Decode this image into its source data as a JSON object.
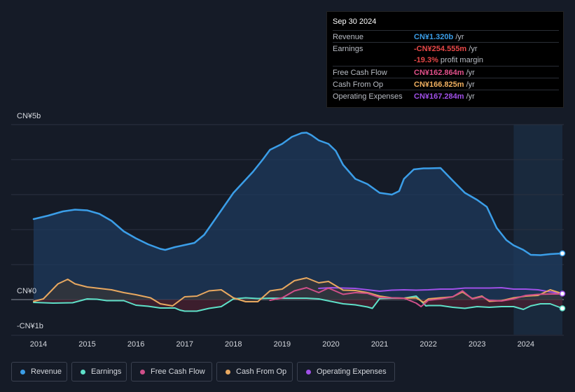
{
  "tooltip": {
    "date": "Sep 30 2024",
    "rows": [
      {
        "label": "Revenue",
        "value": "CN¥1.320b",
        "unit": " /yr",
        "color": "#3b9ee8"
      },
      {
        "label": "Earnings",
        "value": "-CN¥254.555m",
        "unit": " /yr",
        "color": "#e84848"
      },
      {
        "label": "",
        "value": "-19.3%",
        "unit": " profit margin",
        "color": "#e84848"
      },
      {
        "label": "Free Cash Flow",
        "value": "CN¥162.864m",
        "unit": " /yr",
        "color": "#e0508a"
      },
      {
        "label": "Cash From Op",
        "value": "CN¥166.825m",
        "unit": " /yr",
        "color": "#f0b060"
      },
      {
        "label": "Operating Expenses",
        "value": "CN¥167.284m",
        "unit": " /yr",
        "color": "#a050e8"
      }
    ]
  },
  "axis": {
    "top": "CN¥5b",
    "zero": "CN¥0",
    "bottom": "-CN¥1b"
  },
  "legend": [
    {
      "label": "Revenue",
      "color": "#3b9ee8"
    },
    {
      "label": "Earnings",
      "color": "#5ee0c8"
    },
    {
      "label": "Free Cash Flow",
      "color": "#d0508a"
    },
    {
      "label": "Cash From Op",
      "color": "#e8a860"
    },
    {
      "label": "Operating Expenses",
      "color": "#a050e8"
    }
  ],
  "chart_data": {
    "type": "line",
    "title": "",
    "ylabel": "CN¥",
    "ylim": [
      -1,
      5
    ],
    "y_tick_labels": [
      "CN¥5b",
      "CN¥0",
      "-CN¥1b"
    ],
    "x_tick_labels": [
      "2014",
      "2015",
      "2016",
      "2017",
      "2018",
      "2019",
      "2020",
      "2021",
      "2022",
      "2023",
      "2024"
    ],
    "x_range": [
      2013.9,
      2024.75
    ],
    "series": [
      {
        "name": "Revenue",
        "color": "#3b9ee8",
        "unit": "CN¥b",
        "points": [
          [
            2013.9,
            2.3
          ],
          [
            2014.2,
            2.4
          ],
          [
            2014.5,
            2.52
          ],
          [
            2014.75,
            2.57
          ],
          [
            2015.0,
            2.55
          ],
          [
            2015.25,
            2.45
          ],
          [
            2015.5,
            2.25
          ],
          [
            2015.75,
            1.95
          ],
          [
            2016.0,
            1.75
          ],
          [
            2016.25,
            1.58
          ],
          [
            2016.5,
            1.45
          ],
          [
            2016.6,
            1.42
          ],
          [
            2016.8,
            1.5
          ],
          [
            2017.0,
            1.56
          ],
          [
            2017.2,
            1.62
          ],
          [
            2017.4,
            1.85
          ],
          [
            2017.6,
            2.25
          ],
          [
            2017.8,
            2.65
          ],
          [
            2018.0,
            3.05
          ],
          [
            2018.2,
            3.35
          ],
          [
            2018.4,
            3.65
          ],
          [
            2018.6,
            4.0
          ],
          [
            2018.75,
            4.28
          ],
          [
            2019.0,
            4.45
          ],
          [
            2019.2,
            4.65
          ],
          [
            2019.4,
            4.76
          ],
          [
            2019.5,
            4.77
          ],
          [
            2019.6,
            4.7
          ],
          [
            2019.75,
            4.55
          ],
          [
            2019.95,
            4.45
          ],
          [
            2020.1,
            4.25
          ],
          [
            2020.25,
            3.85
          ],
          [
            2020.5,
            3.45
          ],
          [
            2020.75,
            3.3
          ],
          [
            2021.0,
            3.05
          ],
          [
            2021.25,
            3.0
          ],
          [
            2021.4,
            3.1
          ],
          [
            2021.5,
            3.45
          ],
          [
            2021.7,
            3.72
          ],
          [
            2021.9,
            3.75
          ],
          [
            2022.0,
            3.75
          ],
          [
            2022.25,
            3.76
          ],
          [
            2022.5,
            3.4
          ],
          [
            2022.75,
            3.05
          ],
          [
            2023.0,
            2.85
          ],
          [
            2023.2,
            2.65
          ],
          [
            2023.4,
            2.05
          ],
          [
            2023.6,
            1.7
          ],
          [
            2023.75,
            1.55
          ],
          [
            2023.95,
            1.42
          ],
          [
            2024.1,
            1.28
          ],
          [
            2024.3,
            1.27
          ],
          [
            2024.5,
            1.3
          ],
          [
            2024.75,
            1.32
          ]
        ]
      },
      {
        "name": "Earnings",
        "color": "#5ee0c8",
        "unit": "CN¥b",
        "points": [
          [
            2013.9,
            -0.08
          ],
          [
            2014.3,
            -0.1
          ],
          [
            2014.7,
            -0.09
          ],
          [
            2015.0,
            0.02
          ],
          [
            2015.2,
            0.01
          ],
          [
            2015.4,
            -0.03
          ],
          [
            2015.75,
            -0.03
          ],
          [
            2016.0,
            -0.16
          ],
          [
            2016.25,
            -0.19
          ],
          [
            2016.5,
            -0.24
          ],
          [
            2016.8,
            -0.24
          ],
          [
            2016.9,
            -0.3
          ],
          [
            2017.0,
            -0.33
          ],
          [
            2017.25,
            -0.33
          ],
          [
            2017.5,
            -0.25
          ],
          [
            2017.75,
            -0.2
          ],
          [
            2018.0,
            0.02
          ],
          [
            2018.25,
            0.05
          ],
          [
            2018.5,
            0.03
          ],
          [
            2018.75,
            0.04
          ],
          [
            2019.0,
            0.04
          ],
          [
            2019.5,
            0.04
          ],
          [
            2019.75,
            0.02
          ],
          [
            2020.0,
            -0.05
          ],
          [
            2020.25,
            -0.12
          ],
          [
            2020.5,
            -0.15
          ],
          [
            2020.75,
            -0.21
          ],
          [
            2020.85,
            -0.25
          ],
          [
            2021.0,
            0.03
          ],
          [
            2021.25,
            0.04
          ],
          [
            2021.5,
            0.04
          ],
          [
            2021.75,
            0.1
          ],
          [
            2021.95,
            -0.18
          ],
          [
            2022.0,
            -0.17
          ],
          [
            2022.25,
            -0.17
          ],
          [
            2022.5,
            -0.22
          ],
          [
            2022.75,
            -0.25
          ],
          [
            2023.0,
            -0.2
          ],
          [
            2023.25,
            -0.22
          ],
          [
            2023.5,
            -0.2
          ],
          [
            2023.75,
            -0.2
          ],
          [
            2023.95,
            -0.28
          ],
          [
            2024.1,
            -0.18
          ],
          [
            2024.3,
            -0.12
          ],
          [
            2024.5,
            -0.12
          ],
          [
            2024.75,
            -0.25
          ]
        ]
      },
      {
        "name": "Free Cash Flow",
        "color": "#d0508a",
        "unit": "CN¥b",
        "points": [
          [
            2018.75,
            -0.02
          ],
          [
            2019.0,
            0.05
          ],
          [
            2019.25,
            0.25
          ],
          [
            2019.5,
            0.34
          ],
          [
            2019.75,
            0.2
          ],
          [
            2019.95,
            0.33
          ],
          [
            2020.25,
            0.15
          ],
          [
            2020.5,
            0.2
          ],
          [
            2020.75,
            0.18
          ],
          [
            2021.0,
            0.06
          ],
          [
            2021.25,
            0.05
          ],
          [
            2021.5,
            0.04
          ],
          [
            2021.75,
            -0.1
          ],
          [
            2021.85,
            -0.2
          ],
          [
            2022.0,
            -0.02
          ],
          [
            2022.25,
            0.02
          ],
          [
            2022.5,
            0.08
          ],
          [
            2022.7,
            0.25
          ],
          [
            2022.9,
            0.02
          ],
          [
            2023.1,
            0.08
          ],
          [
            2023.25,
            -0.02
          ],
          [
            2023.5,
            -0.04
          ],
          [
            2023.75,
            0.02
          ],
          [
            2024.0,
            0.12
          ],
          [
            2024.25,
            0.15
          ],
          [
            2024.5,
            0.16
          ],
          [
            2024.75,
            0.16
          ]
        ]
      },
      {
        "name": "Cash From Op",
        "color": "#e8a860",
        "unit": "CN¥b",
        "points": [
          [
            2013.9,
            -0.05
          ],
          [
            2014.1,
            0.02
          ],
          [
            2014.4,
            0.45
          ],
          [
            2014.6,
            0.58
          ],
          [
            2014.75,
            0.45
          ],
          [
            2015.0,
            0.36
          ],
          [
            2015.25,
            0.32
          ],
          [
            2015.5,
            0.28
          ],
          [
            2015.75,
            0.2
          ],
          [
            2016.0,
            0.14
          ],
          [
            2016.3,
            0.05
          ],
          [
            2016.5,
            -0.12
          ],
          [
            2016.75,
            -0.18
          ],
          [
            2017.0,
            0.08
          ],
          [
            2017.25,
            0.1
          ],
          [
            2017.5,
            0.25
          ],
          [
            2017.75,
            0.28
          ],
          [
            2018.0,
            0.05
          ],
          [
            2018.25,
            -0.06
          ],
          [
            2018.5,
            -0.06
          ],
          [
            2018.75,
            0.25
          ],
          [
            2019.0,
            0.3
          ],
          [
            2019.25,
            0.54
          ],
          [
            2019.5,
            0.62
          ],
          [
            2019.75,
            0.48
          ],
          [
            2019.95,
            0.52
          ],
          [
            2020.25,
            0.27
          ],
          [
            2020.5,
            0.26
          ],
          [
            2020.75,
            0.2
          ],
          [
            2021.0,
            0.1
          ],
          [
            2021.25,
            0.05
          ],
          [
            2021.5,
            0.04
          ],
          [
            2021.75,
            0.05
          ],
          [
            2021.9,
            -0.08
          ],
          [
            2022.0,
            0.02
          ],
          [
            2022.25,
            0.05
          ],
          [
            2022.5,
            0.08
          ],
          [
            2022.7,
            0.22
          ],
          [
            2022.9,
            0.03
          ],
          [
            2023.1,
            0.1
          ],
          [
            2023.25,
            -0.05
          ],
          [
            2023.5,
            -0.03
          ],
          [
            2023.75,
            0.05
          ],
          [
            2024.0,
            0.1
          ],
          [
            2024.25,
            0.12
          ],
          [
            2024.5,
            0.28
          ],
          [
            2024.75,
            0.17
          ]
        ]
      },
      {
        "name": "Operating Expenses",
        "color": "#a050e8",
        "unit": "CN¥b",
        "points": [
          [
            2019.75,
            0.32
          ],
          [
            2020.0,
            0.34
          ],
          [
            2020.25,
            0.33
          ],
          [
            2020.5,
            0.32
          ],
          [
            2020.75,
            0.28
          ],
          [
            2021.0,
            0.24
          ],
          [
            2021.25,
            0.27
          ],
          [
            2021.5,
            0.28
          ],
          [
            2021.75,
            0.27
          ],
          [
            2022.0,
            0.28
          ],
          [
            2022.25,
            0.3
          ],
          [
            2022.5,
            0.3
          ],
          [
            2022.75,
            0.33
          ],
          [
            2023.0,
            0.33
          ],
          [
            2023.25,
            0.33
          ],
          [
            2023.5,
            0.34
          ],
          [
            2023.75,
            0.3
          ],
          [
            2024.0,
            0.3
          ],
          [
            2024.25,
            0.28
          ],
          [
            2024.5,
            0.22
          ],
          [
            2024.75,
            0.17
          ]
        ]
      }
    ]
  }
}
